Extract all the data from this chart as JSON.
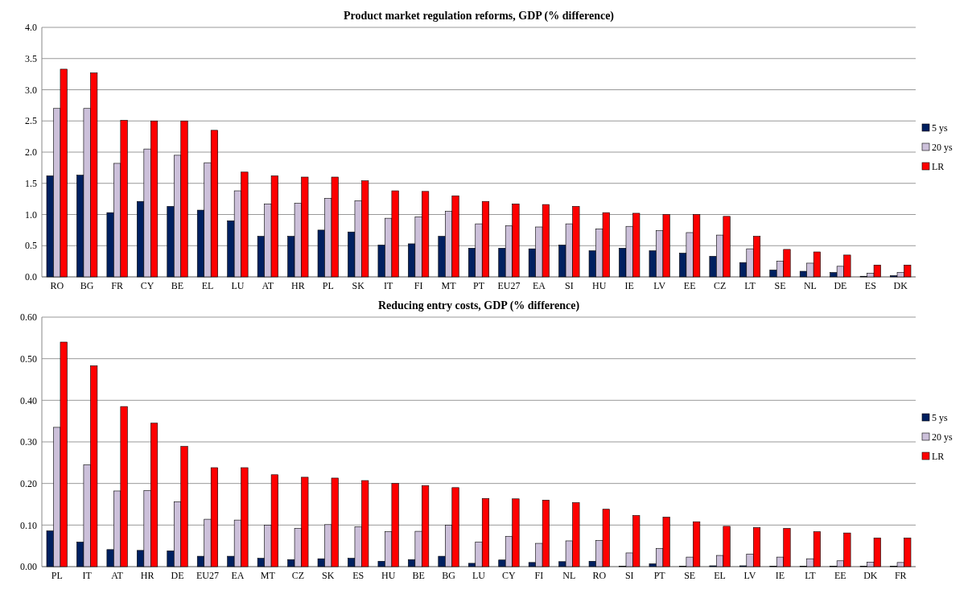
{
  "chart_data": [
    {
      "type": "bar",
      "title": "Product market regulation reforms, GDP (% difference)",
      "categories": [
        "RO",
        "BG",
        "FR",
        "CY",
        "BE",
        "EL",
        "LU",
        "AT",
        "HR",
        "PL",
        "SK",
        "IT",
        "FI",
        "MT",
        "PT",
        "EU27",
        "EA",
        "SI",
        "HU",
        "IE",
        "LV",
        "EE",
        "CZ",
        "LT",
        "SE",
        "NL",
        "DE",
        "ES",
        "DK"
      ],
      "series": [
        {
          "name": "5 ys",
          "color": "#002060",
          "values": [
            1.62,
            1.63,
            1.03,
            1.21,
            1.13,
            1.07,
            0.9,
            0.65,
            0.65,
            0.75,
            0.72,
            0.51,
            0.53,
            0.65,
            0.46,
            0.46,
            0.45,
            0.51,
            0.42,
            0.46,
            0.42,
            0.38,
            0.33,
            0.23,
            0.11,
            0.09,
            0.07,
            0.01,
            0.02
          ]
        },
        {
          "name": "20 ys",
          "color": "#ccc0da",
          "values": [
            2.7,
            2.7,
            1.82,
            2.05,
            1.95,
            1.83,
            1.38,
            1.17,
            1.18,
            1.26,
            1.22,
            0.94,
            0.96,
            1.05,
            0.85,
            0.82,
            0.8,
            0.85,
            0.77,
            0.81,
            0.74,
            0.71,
            0.67,
            0.45,
            0.25,
            0.22,
            0.17,
            0.06,
            0.07
          ]
        },
        {
          "name": "LR",
          "color": "#ff0000",
          "values": [
            3.33,
            3.27,
            2.51,
            2.5,
            2.5,
            2.35,
            1.68,
            1.62,
            1.6,
            1.6,
            1.54,
            1.38,
            1.37,
            1.3,
            1.21,
            1.17,
            1.16,
            1.13,
            1.03,
            1.02,
            1.0,
            1.0,
            0.97,
            0.65,
            0.44,
            0.4,
            0.35,
            0.19,
            0.19
          ]
        }
      ],
      "ylim": [
        0,
        4
      ],
      "yticks": [
        {
          "value": 0,
          "label": "0.0"
        },
        {
          "value": 0.5,
          "label": "0.5"
        },
        {
          "value": 1,
          "label": "1.0"
        },
        {
          "value": 1.5,
          "label": "1.5"
        },
        {
          "value": 2,
          "label": "2.0"
        },
        {
          "value": 2.5,
          "label": "2.5"
        },
        {
          "value": 3,
          "label": "3.0"
        },
        {
          "value": 3.5,
          "label": "3.5"
        },
        {
          "value": 4,
          "label": "4.0"
        }
      ],
      "grid": "y",
      "legend": "right"
    },
    {
      "type": "bar",
      "title": "Reducing entry costs, GDP (% difference)",
      "categories": [
        "PL",
        "IT",
        "AT",
        "HR",
        "DE",
        "EU27",
        "EA",
        "MT",
        "CZ",
        "SK",
        "ES",
        "HU",
        "BE",
        "BG",
        "LU",
        "CY",
        "FI",
        "NL",
        "RO",
        "SI",
        "PT",
        "SE",
        "EL",
        "LV",
        "IE",
        "LT",
        "EE",
        "DK",
        "FR"
      ],
      "series": [
        {
          "name": "5 ys",
          "color": "#002060",
          "values": [
            0.086,
            0.059,
            0.041,
            0.039,
            0.038,
            0.025,
            0.025,
            0.02,
            0.017,
            0.019,
            0.02,
            0.013,
            0.017,
            0.025,
            0.008,
            0.016,
            0.01,
            0.012,
            0.013,
            0.001,
            0.007,
            0.001,
            0.002,
            0.002,
            0.001,
            0.001,
            0.001,
            0.001,
            0.001
          ]
        },
        {
          "name": "20 ys",
          "color": "#ccc0da",
          "values": [
            0.335,
            0.245,
            0.182,
            0.183,
            0.156,
            0.114,
            0.112,
            0.1,
            0.092,
            0.101,
            0.096,
            0.084,
            0.085,
            0.1,
            0.059,
            0.073,
            0.056,
            0.062,
            0.063,
            0.033,
            0.044,
            0.023,
            0.027,
            0.03,
            0.023,
            0.019,
            0.014,
            0.011,
            0.01
          ]
        },
        {
          "name": "LR",
          "color": "#ff0000",
          "values": [
            0.54,
            0.483,
            0.385,
            0.345,
            0.289,
            0.238,
            0.238,
            0.221,
            0.215,
            0.213,
            0.207,
            0.2,
            0.195,
            0.19,
            0.164,
            0.163,
            0.16,
            0.154,
            0.138,
            0.123,
            0.119,
            0.108,
            0.097,
            0.094,
            0.092,
            0.084,
            0.081,
            0.069,
            0.069
          ]
        }
      ],
      "ylim": [
        0,
        0.6
      ],
      "yticks": [
        {
          "value": 0,
          "label": "0.00"
        },
        {
          "value": 0.1,
          "label": "0.10"
        },
        {
          "value": 0.2,
          "label": "0.20"
        },
        {
          "value": 0.3,
          "label": "0.30"
        },
        {
          "value": 0.4,
          "label": "0.40"
        },
        {
          "value": 0.5,
          "label": "0.50"
        },
        {
          "value": 0.6,
          "label": "0.60"
        }
      ],
      "grid": "y",
      "legend": "right"
    }
  ]
}
